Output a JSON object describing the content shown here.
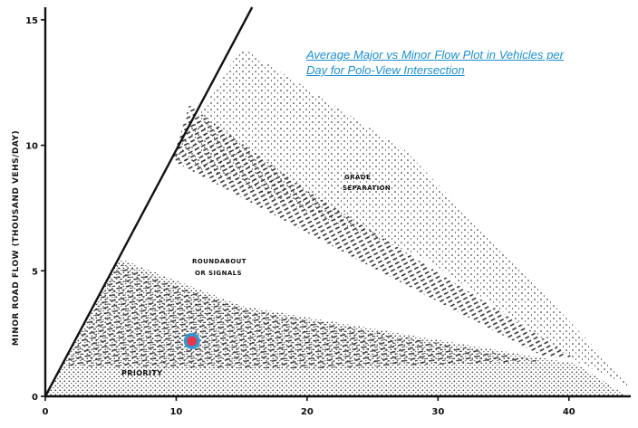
{
  "chart_data": {
    "type": "area",
    "xlabel": "",
    "ylabel": "MINOR ROAD FLOW (THOUSAND VEHS/DAY)",
    "xlim": [
      0,
      45
    ],
    "ylim": [
      0,
      15.5
    ],
    "x_ticks": [
      "0",
      "10",
      "20",
      "30",
      "40"
    ],
    "y_ticks": [
      "0",
      "5",
      "10",
      "15"
    ],
    "boundary_line": {
      "x": [
        0,
        15.8
      ],
      "y": [
        0,
        15.5
      ]
    },
    "regions": [
      {
        "name": "PRIORITY",
        "polygon": [
          [
            0,
            0
          ],
          [
            5.6,
            5.5
          ],
          [
            15,
            3.6
          ],
          [
            40.5,
            1.3
          ],
          [
            44.5,
            0
          ]
        ]
      },
      {
        "name": "ROUNDABOUT OR SIGNALS"
      },
      {
        "name": "GRADE SEPARATION",
        "polygon": [
          [
            9.7,
            9.5
          ],
          [
            15,
            13.9
          ],
          [
            27.5,
            9.8
          ],
          [
            45,
            0.3
          ],
          [
            40.5,
            1.4
          ],
          [
            29,
            5.5
          ],
          [
            9.7,
            9.5
          ]
        ]
      }
    ],
    "marker": {
      "x": 11.2,
      "y": 2.2
    },
    "annotation": "Average Major vs Minor Flow Plot in Vehicles per Day for Polo-View Intersection",
    "grid": false,
    "legend": "none"
  },
  "labels": {
    "priority": "PRIORITY",
    "roundabout_1": "ROUNDABOUT",
    "roundabout_2": "OR SIGNALS",
    "grade_1": "GRADE",
    "grade_2": "SEPARATION"
  },
  "colors": {
    "ink": "#111111",
    "marker_outer": "#2f9bd6",
    "marker_inner": "#e8364a",
    "annotation": "#1a8fd1"
  }
}
